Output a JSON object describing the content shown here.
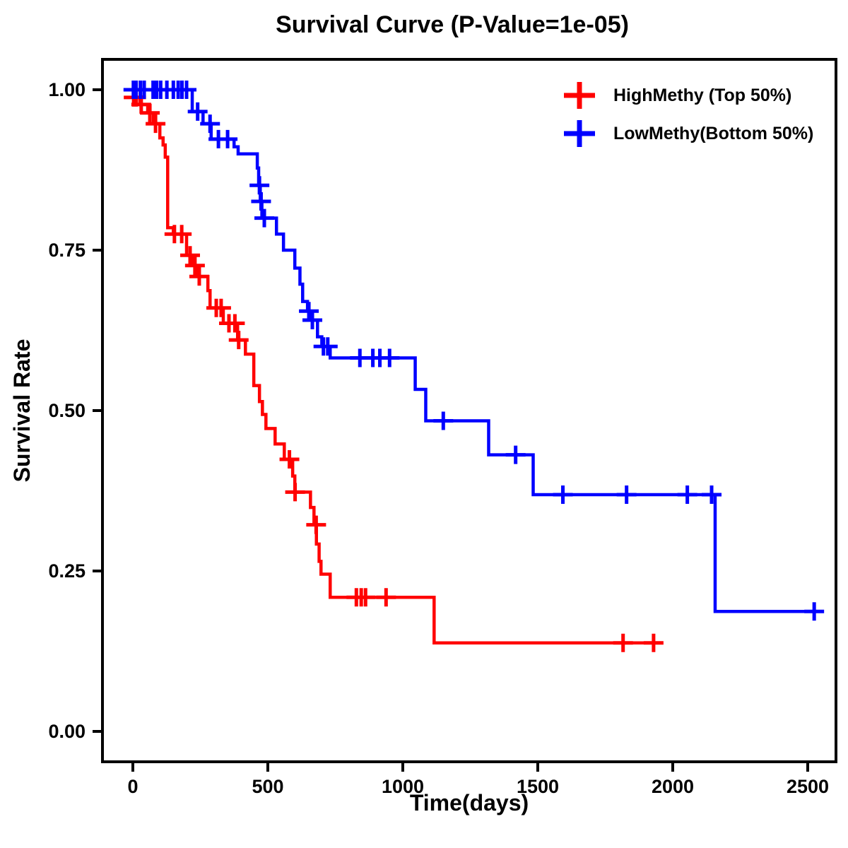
{
  "title": "Survival Curve (P-Value=1e-05)",
  "x_axis": {
    "label": "Time(days)"
  },
  "y_axis": {
    "label": "Survival Rate"
  },
  "legend": {
    "items": [
      {
        "label": "HighMethy (Top 50%)",
        "color": "#FF0000"
      },
      {
        "label": "LowMethy(Bottom 50%)",
        "color": "#0000FF"
      }
    ]
  },
  "colors": {
    "high_methy": "#FF0000",
    "low_methy": "#0000FF",
    "axis": "#000000",
    "background": "#FFFFFF"
  },
  "chart_data": {
    "type": "line",
    "subtype": "kaplan_meier_step_curve",
    "title": "Survival Curve (P-Value=1e-05)",
    "xlabel": "Time(days)",
    "ylabel": "Survival Rate",
    "xlim": [
      -100,
      2620
    ],
    "ylim": [
      -0.05,
      1.05
    ],
    "grid": false,
    "legend_position": "top-right",
    "xticks": [
      {
        "value": 0,
        "label": "0"
      },
      {
        "value": 500,
        "label": "500"
      },
      {
        "value": 1000,
        "label": "1000"
      },
      {
        "value": 1500,
        "label": "1500"
      },
      {
        "value": 2000,
        "label": "2000"
      },
      {
        "value": 2500,
        "label": "2500"
      }
    ],
    "yticks": [
      {
        "value": 0.0,
        "label": "0.00"
      },
      {
        "value": 0.25,
        "label": "0.25"
      },
      {
        "value": 0.5,
        "label": "0.50"
      },
      {
        "value": 0.75,
        "label": "0.75"
      },
      {
        "value": 1.0,
        "label": "1.00"
      }
    ],
    "series": [
      {
        "name": "HighMethy (Top 50%)",
        "color": "#FF0000",
        "start": [
          0,
          1.0
        ],
        "steps": [
          [
            5,
            0.988
          ],
          [
            26,
            0.977
          ],
          [
            55,
            0.964
          ],
          [
            76,
            0.947
          ],
          [
            100,
            0.925
          ],
          [
            112,
            0.914
          ],
          [
            120,
            0.895
          ],
          [
            129,
            0.785
          ],
          [
            150,
            0.775
          ],
          [
            199,
            0.742
          ],
          [
            220,
            0.726
          ],
          [
            238,
            0.709
          ],
          [
            278,
            0.687
          ],
          [
            286,
            0.66
          ],
          [
            335,
            0.636
          ],
          [
            388,
            0.61
          ],
          [
            417,
            0.588
          ],
          [
            448,
            0.539
          ],
          [
            469,
            0.514
          ],
          [
            480,
            0.494
          ],
          [
            493,
            0.472
          ],
          [
            527,
            0.448
          ],
          [
            561,
            0.424
          ],
          [
            592,
            0.398
          ],
          [
            600,
            0.373
          ],
          [
            658,
            0.349
          ],
          [
            671,
            0.322
          ],
          [
            680,
            0.292
          ],
          [
            690,
            0.265
          ],
          [
            697,
            0.245
          ],
          [
            731,
            0.209
          ],
          [
            1116,
            0.138
          ]
        ],
        "end_time": 1963,
        "censor_marks": [
          [
            3,
            0.988
          ],
          [
            12,
            0.988
          ],
          [
            31,
            0.977
          ],
          [
            63,
            0.964
          ],
          [
            84,
            0.947
          ],
          [
            154,
            0.775
          ],
          [
            181,
            0.775
          ],
          [
            212,
            0.742
          ],
          [
            230,
            0.726
          ],
          [
            246,
            0.709
          ],
          [
            309,
            0.66
          ],
          [
            327,
            0.66
          ],
          [
            356,
            0.636
          ],
          [
            378,
            0.636
          ],
          [
            392,
            0.61
          ],
          [
            580,
            0.424
          ],
          [
            601,
            0.373
          ],
          [
            679,
            0.322
          ],
          [
            828,
            0.209
          ],
          [
            846,
            0.209
          ],
          [
            862,
            0.209
          ],
          [
            938,
            0.209
          ],
          [
            1816,
            0.138
          ],
          [
            1929,
            0.138
          ]
        ]
      },
      {
        "name": "LowMethy(Bottom 50%)",
        "color": "#0000FF",
        "start": [
          0,
          1.0
        ],
        "steps": [
          [
            220,
            0.966
          ],
          [
            260,
            0.947
          ],
          [
            290,
            0.923
          ],
          [
            375,
            0.911
          ],
          [
            390,
            0.9
          ],
          [
            461,
            0.878
          ],
          [
            466,
            0.851
          ],
          [
            472,
            0.826
          ],
          [
            478,
            0.8
          ],
          [
            532,
            0.775
          ],
          [
            558,
            0.75
          ],
          [
            600,
            0.722
          ],
          [
            619,
            0.697
          ],
          [
            629,
            0.67
          ],
          [
            647,
            0.655
          ],
          [
            662,
            0.641
          ],
          [
            684,
            0.615
          ],
          [
            700,
            0.6
          ],
          [
            731,
            0.582
          ],
          [
            1046,
            0.533
          ],
          [
            1085,
            0.484
          ],
          [
            1318,
            0.431
          ],
          [
            1483,
            0.369
          ],
          [
            2157,
            0.187
          ]
        ],
        "end_time": 2558,
        "censor_marks": [
          [
            2,
            1.0
          ],
          [
            12,
            1.0
          ],
          [
            28,
            1.0
          ],
          [
            42,
            1.0
          ],
          [
            75,
            1.0
          ],
          [
            88,
            1.0
          ],
          [
            103,
            1.0
          ],
          [
            126,
            1.0
          ],
          [
            150,
            1.0
          ],
          [
            168,
            1.0
          ],
          [
            182,
            1.0
          ],
          [
            199,
            1.0
          ],
          [
            240,
            0.966
          ],
          [
            286,
            0.947
          ],
          [
            317,
            0.923
          ],
          [
            351,
            0.923
          ],
          [
            469,
            0.851
          ],
          [
            475,
            0.826
          ],
          [
            487,
            0.8
          ],
          [
            652,
            0.655
          ],
          [
            665,
            0.641
          ],
          [
            706,
            0.6
          ],
          [
            722,
            0.6
          ],
          [
            841,
            0.582
          ],
          [
            889,
            0.582
          ],
          [
            915,
            0.582
          ],
          [
            951,
            0.582
          ],
          [
            1150,
            0.484
          ],
          [
            1418,
            0.431
          ],
          [
            1593,
            0.369
          ],
          [
            1829,
            0.369
          ],
          [
            2054,
            0.369
          ],
          [
            2144,
            0.369
          ],
          [
            2524,
            0.187
          ]
        ]
      }
    ]
  }
}
